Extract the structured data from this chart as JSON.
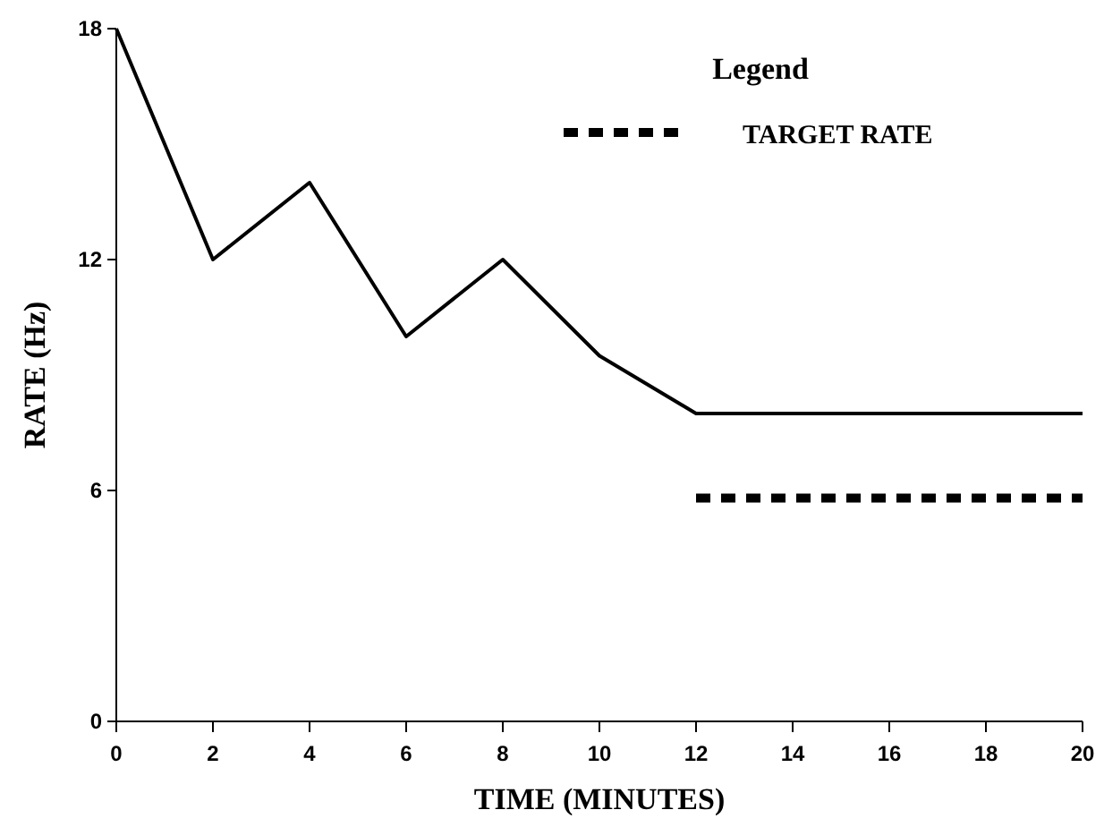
{
  "chart_data": {
    "type": "line",
    "xlabel": "TIME (MINUTES)",
    "ylabel": "RATE (Hz)",
    "legend_title": "Legend",
    "legend": "top right",
    "xlim": [
      0,
      20
    ],
    "xticks": [
      0,
      2,
      4,
      6,
      8,
      10,
      12,
      14,
      16,
      18,
      20
    ],
    "ylim": [
      0,
      18
    ],
    "yticks": [
      0,
      6,
      12,
      18
    ],
    "grid": false,
    "marker": "none",
    "series": [
      {
        "color": "#000000",
        "x": [
          0,
          2,
          4,
          6,
          8,
          10,
          12,
          20
        ],
        "values": [
          18,
          12,
          14,
          10,
          12,
          9.5,
          8,
          8
        ],
        "line_style": "solid"
      },
      {
        "name": "TARGET RATE",
        "color": "#000000",
        "x": [
          12,
          20
        ],
        "values": [
          5.8,
          5.8
        ],
        "line_style": "dashed"
      }
    ]
  }
}
